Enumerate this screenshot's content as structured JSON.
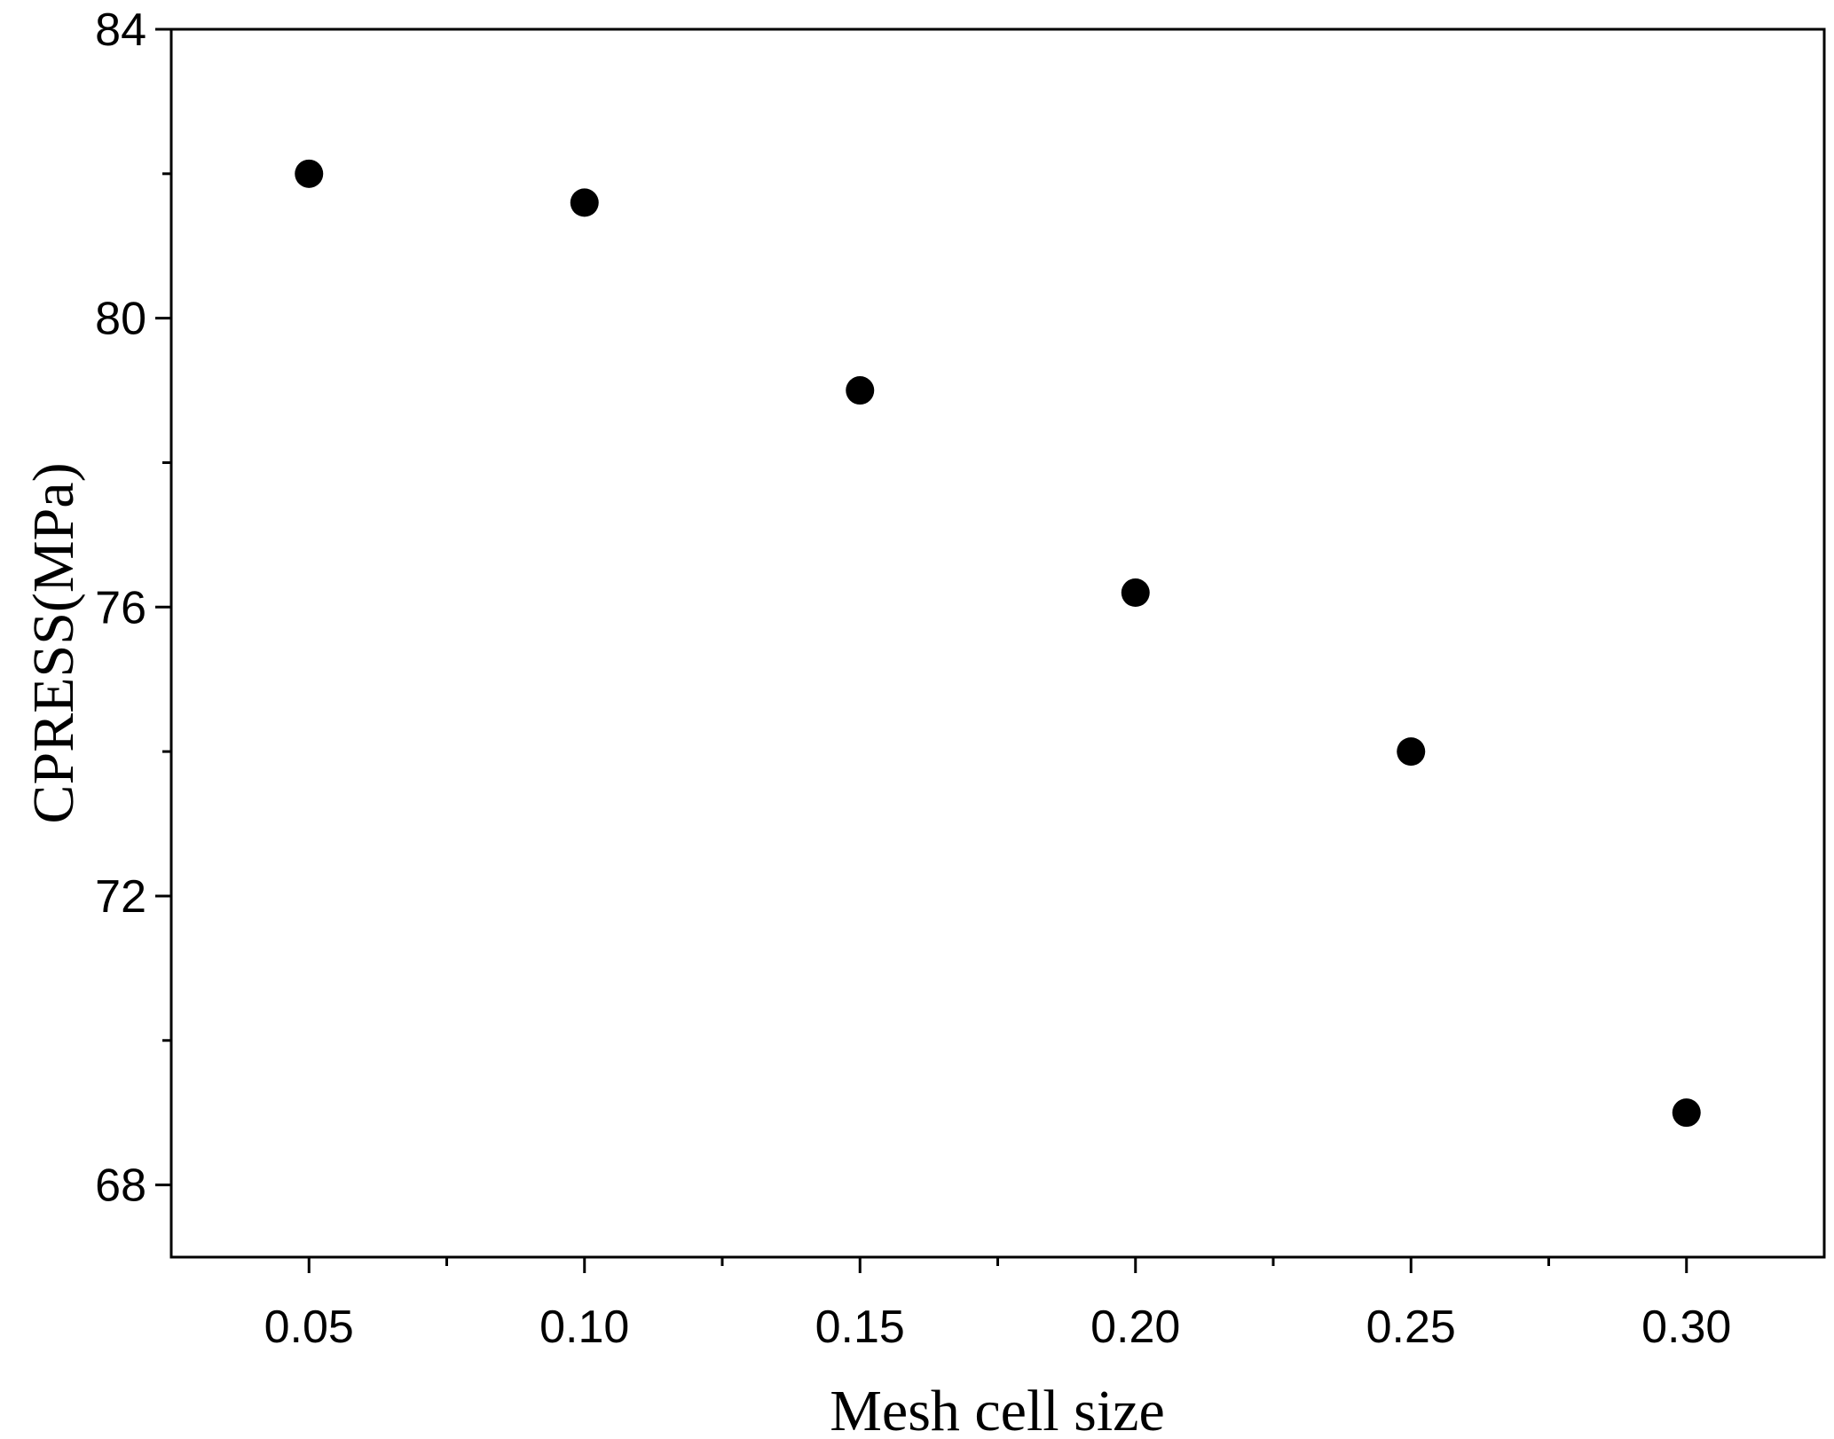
{
  "chart_data": {
    "type": "scatter",
    "title": "",
    "xlabel": "Mesh cell size",
    "ylabel": "CPRESS(MPa)",
    "xlim": [
      0.025,
      0.325
    ],
    "ylim": [
      67,
      84
    ],
    "x_ticks": [
      0.05,
      0.1,
      0.15,
      0.2,
      0.25,
      0.3
    ],
    "x_tick_labels": [
      "0.05",
      "0.10",
      "0.15",
      "0.20",
      "0.25",
      "0.30"
    ],
    "x_minor_ticks": [
      0.075,
      0.125,
      0.175,
      0.225,
      0.275
    ],
    "y_ticks": [
      68,
      72,
      76,
      80,
      84
    ],
    "y_tick_labels": [
      "68",
      "72",
      "76",
      "80",
      "84"
    ],
    "y_minor_ticks": [
      70,
      74,
      78,
      82
    ],
    "grid": false,
    "marker_color": "#000000",
    "series": [
      {
        "x": [
          0.05,
          0.1,
          0.15,
          0.2,
          0.25,
          0.3
        ],
        "y": [
          82.0,
          81.6,
          79.0,
          76.2,
          74.0,
          69.0
        ]
      }
    ]
  }
}
